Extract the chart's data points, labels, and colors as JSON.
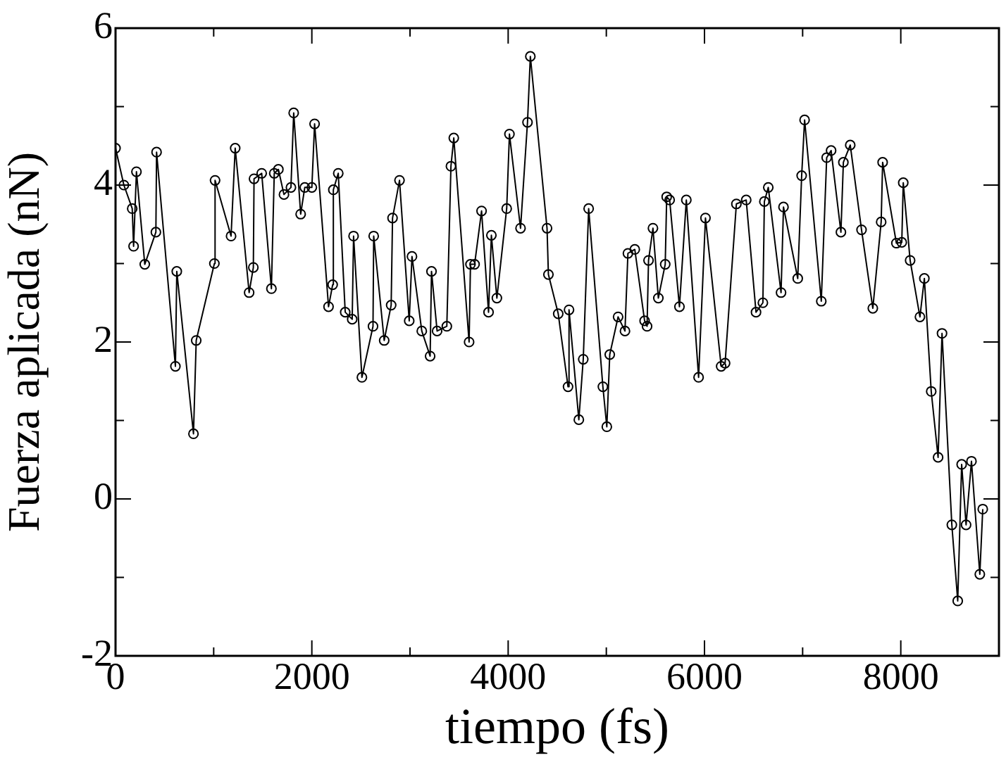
{
  "chart_data": {
    "type": "line",
    "xlabel": "tiempo (fs)",
    "ylabel": "Fuerza aplicada (nN)",
    "x": [
      0,
      85,
      170,
      184,
      213,
      298,
      411,
      418,
      610,
      624,
      794,
      822,
      1007,
      1014,
      1177,
      1219,
      1361,
      1404,
      1411,
      1489,
      1588,
      1617,
      1659,
      1716,
      1787,
      1815,
      1886,
      1928,
      2000,
      2028,
      2170,
      2212,
      2219,
      2269,
      2340,
      2411,
      2425,
      2510,
      2623,
      2630,
      2737,
      2808,
      2822,
      2893,
      2992,
      3020,
      3120,
      3205,
      3219,
      3276,
      3375,
      3417,
      3446,
      3602,
      3616,
      3658,
      3729,
      3800,
      3829,
      3885,
      3985,
      4013,
      4126,
      4197,
      4226,
      4396,
      4410,
      4510,
      4610,
      4620,
      4720,
      4765,
      4820,
      4965,
      5005,
      5035,
      5120,
      5190,
      5220,
      5290,
      5390,
      5415,
      5430,
      5475,
      5530,
      5600,
      5615,
      5645,
      5745,
      5815,
      5940,
      6010,
      6170,
      6210,
      6325,
      6425,
      6525,
      6595,
      6610,
      6650,
      6780,
      6805,
      6950,
      6990,
      7020,
      7190,
      7245,
      7290,
      7390,
      7415,
      7485,
      7600,
      7715,
      7800,
      7815,
      7955,
      8010,
      8025,
      8095,
      8195,
      8240,
      8310,
      8380,
      8420,
      8520,
      8580,
      8620,
      8665,
      8720,
      8805,
      8835
    ],
    "series": [
      {
        "color": "#000000",
        "values": [
          4.47,
          4.0,
          3.7,
          3.22,
          4.17,
          2.99,
          3.4,
          4.42,
          1.69,
          2.9,
          0.83,
          2.02,
          3.0,
          4.06,
          3.35,
          4.47,
          2.63,
          2.95,
          4.08,
          4.15,
          2.68,
          4.15,
          4.2,
          3.88,
          3.97,
          4.92,
          3.63,
          3.97,
          3.97,
          4.78,
          2.45,
          2.73,
          3.94,
          4.15,
          2.38,
          2.29,
          3.35,
          1.55,
          2.2,
          3.35,
          2.02,
          2.47,
          3.58,
          4.06,
          2.27,
          3.09,
          2.14,
          1.82,
          2.9,
          2.14,
          2.2,
          4.24,
          4.6,
          2.0,
          2.99,
          2.99,
          3.67,
          2.38,
          3.36,
          2.56,
          3.7,
          4.65,
          3.45,
          4.8,
          5.64,
          3.45,
          2.86,
          2.36,
          1.43,
          2.41,
          1.01,
          1.78,
          3.7,
          1.43,
          0.92,
          1.84,
          2.32,
          2.14,
          3.13,
          3.18,
          2.27,
          2.2,
          3.04,
          3.45,
          2.56,
          2.99,
          3.85,
          3.81,
          2.45,
          3.81,
          1.55,
          3.58,
          1.69,
          1.73,
          3.76,
          3.81,
          2.38,
          2.5,
          3.79,
          3.97,
          2.63,
          3.72,
          2.81,
          4.12,
          4.83,
          2.52,
          4.35,
          4.44,
          3.4,
          4.29,
          4.51,
          3.43,
          2.43,
          3.53,
          4.29,
          3.26,
          3.27,
          4.03,
          3.04,
          2.32,
          2.81,
          1.37,
          0.53,
          2.11,
          -0.33,
          -1.3,
          0.44,
          -0.33,
          0.48,
          -0.96,
          -0.13
        ]
      }
    ],
    "xlim": [
      0,
      9000
    ],
    "xticks": [
      0,
      {
        "value": 1000,
        "label": null
      },
      2000,
      {
        "value": 3000,
        "label": null
      },
      4000,
      {
        "value": 5000,
        "label": null
      },
      6000,
      {
        "value": 7000,
        "label": null
      },
      8000
    ],
    "ylim": [
      -2,
      6
    ],
    "yticks": [
      -2,
      {
        "value": -1,
        "label": null
      },
      0,
      {
        "value": 1,
        "label": null
      },
      2,
      {
        "value": 3,
        "label": null
      },
      4,
      {
        "value": 5,
        "label": null
      },
      6
    ],
    "marker": "circle",
    "line_style": "solid",
    "grid": false,
    "legend": false
  }
}
